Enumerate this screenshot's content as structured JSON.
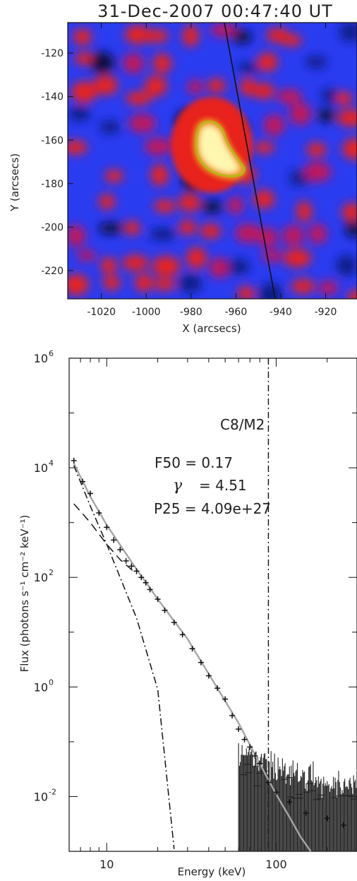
{
  "chart_data": [
    {
      "type": "heatmap",
      "title": "31-Dec-2007 00:47:40 UT",
      "xlabel": "X (arcsecs)",
      "ylabel": "Y (arcsecs)",
      "xlim": [
        -1035,
        -906
      ],
      "ylim": [
        -233,
        -106
      ],
      "xticks": [
        -1020,
        -1000,
        -980,
        -960,
        -940,
        -920
      ],
      "xtick_labels": [
        "-1020",
        "-1000",
        "-980",
        "-960",
        "-940",
        "-920"
      ],
      "yticks": [
        -120,
        -140,
        -160,
        -180,
        -200,
        -220
      ],
      "ytick_labels": [
        "-120",
        "-140",
        "-160",
        "-180",
        "-200",
        "-220"
      ],
      "colors": {
        "background": "#2a3cf0",
        "red": "#e8221c",
        "source": "#fff7b0"
      },
      "source_centroid": [
        -973,
        -167
      ],
      "limb_line": [
        [
          -967,
          -106
        ],
        [
          -946,
          -233
        ]
      ]
    },
    {
      "type": "scatter",
      "xscale": "log",
      "yscale": "log",
      "xlabel": "Energy (keV)",
      "ylabel": "Flux (photons s⁻¹ cm⁻² keV⁻¹)",
      "xlim": [
        6,
        300
      ],
      "ylim": [
        0.001,
        1000000
      ],
      "xticks": [
        10,
        100
      ],
      "xtick_labels": [
        "10",
        "100"
      ],
      "yticks": [
        0.01,
        1,
        100,
        10000,
        1000000
      ],
      "ytick_labels": [
        {
          "base": "10",
          "exp": "-2"
        },
        {
          "base": "10",
          "exp": "0"
        },
        {
          "base": "10",
          "exp": "2"
        },
        {
          "base": "10",
          "exp": "4"
        },
        {
          "base": "10",
          "exp": "6"
        }
      ],
      "annotations": {
        "class": "C8/M2",
        "f50": "F50 = 0.17",
        "gamma_symbol": "γ",
        "gamma_value": "= 4.51",
        "p25": "P25 = 4.09e+27"
      },
      "vertical_line_x": 90,
      "series": [
        {
          "style": "solid-gray",
          "points": [
            [
              6.4,
              12000
            ],
            [
              8,
              3000
            ],
            [
              10,
              900
            ],
            [
              15,
              140
            ],
            [
              20,
              40
            ],
            [
              30,
              7.5
            ],
            [
              45,
              0.95
            ],
            [
              60,
              0.22
            ],
            [
              80,
              0.04
            ],
            [
              100,
              0.011
            ],
            [
              120,
              0.0042
            ],
            [
              140,
              0.0018
            ],
            [
              160,
              0.001
            ]
          ]
        },
        {
          "style": "dashed",
          "points": [
            [
              6.4,
              2200
            ],
            [
              8,
              1000
            ],
            [
              10,
              400
            ],
            [
              12,
              210
            ],
            [
              15,
              115
            ]
          ]
        },
        {
          "style": "dash-dot",
          "points": [
            [
              6.4,
              11000
            ],
            [
              8,
              2000
            ],
            [
              10,
              400
            ],
            [
              15,
              18
            ],
            [
              20,
              0.9
            ],
            [
              25,
              0.0011
            ]
          ]
        },
        {
          "style": "data-plus",
          "points": [
            [
              6.4,
              13500
            ],
            [
              7.2,
              5600
            ],
            [
              8,
              3400
            ],
            [
              9,
              1500
            ],
            [
              10,
              820
            ],
            [
              11,
              480
            ],
            [
              12,
              320
            ],
            [
              13,
              200
            ],
            [
              14,
              160
            ],
            [
              15,
              130
            ],
            [
              16,
              100
            ],
            [
              17,
              80
            ],
            [
              18,
              60
            ],
            [
              20,
              40
            ],
            [
              22,
              25
            ],
            [
              25,
              15
            ],
            [
              28,
              9
            ],
            [
              32,
              5
            ],
            [
              36,
              2.8
            ],
            [
              40,
              1.6
            ],
            [
              45,
              0.95
            ],
            [
              50,
              0.6
            ],
            [
              55,
              0.3
            ],
            [
              60,
              0.17
            ],
            [
              65,
              0.11
            ],
            [
              70,
              0.08
            ],
            [
              75,
              0.055
            ],
            [
              80,
              0.04
            ],
            [
              90,
              0.018
            ],
            [
              100,
              0.012
            ],
            [
              120,
              0.008
            ],
            [
              150,
              0.005
            ],
            [
              200,
              0.004
            ],
            [
              250,
              0.003
            ]
          ]
        }
      ]
    }
  ]
}
